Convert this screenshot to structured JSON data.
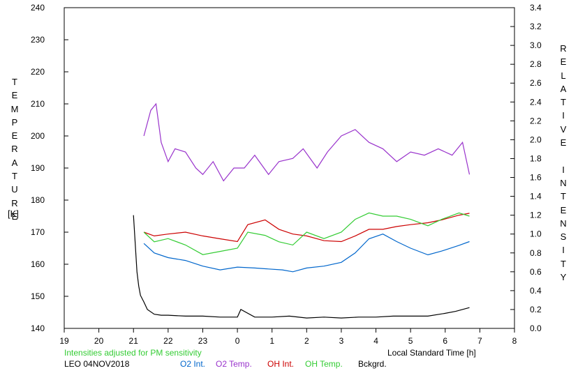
{
  "chart_data": {
    "type": "line",
    "xlabel": "Local Standard Time [h]",
    "ylabel_left": "TEMPERATURE",
    "ylabel_left_unit": "[K]",
    "ylabel_right": "RELATIVE INTENSITY",
    "x_ticks": [
      "19",
      "20",
      "21",
      "22",
      "23",
      "0",
      "1",
      "2",
      "3",
      "4",
      "5",
      "6",
      "7",
      "8"
    ],
    "xlim": [
      19,
      32
    ],
    "ylim_left": [
      140,
      240
    ],
    "ylim_right": [
      0,
      3.4
    ],
    "y_ticks_left": [
      "140",
      "150",
      "160",
      "170",
      "180",
      "190",
      "200",
      "210",
      "220",
      "230",
      "240"
    ],
    "y_ticks_right": [
      "0.0",
      "0.2",
      "0.4",
      "0.6",
      "0.8",
      "1.0",
      "1.2",
      "1.4",
      "1.6",
      "1.8",
      "2.0",
      "2.2",
      "2.4",
      "2.6",
      "2.8",
      "3.0",
      "3.2",
      "3.4"
    ],
    "grid": false,
    "note": "Intensities adjusted for PM sensitivity",
    "station": "LEO 04NOV2018",
    "series": [
      {
        "name": "O2 Int.",
        "color": "#0066cc",
        "axis": "right",
        "x": [
          21.3,
          21.6,
          22.0,
          22.5,
          23.0,
          23.5,
          24.0,
          24.5,
          24.9,
          25.3,
          25.6,
          26.0,
          26.5,
          27.0,
          27.4,
          27.8,
          28.2,
          28.6,
          29.0,
          29.5,
          29.9,
          30.4,
          30.7
        ],
        "y": [
          0.9,
          0.8,
          0.75,
          0.72,
          0.66,
          0.62,
          0.65,
          0.64,
          0.63,
          0.62,
          0.6,
          0.64,
          0.66,
          0.7,
          0.8,
          0.95,
          1.0,
          0.92,
          0.85,
          0.78,
          0.82,
          0.88,
          0.92
        ]
      },
      {
        "name": "O2 Temp.",
        "color": "#9933cc",
        "axis": "left",
        "x": [
          21.3,
          21.5,
          21.65,
          21.8,
          22.0,
          22.2,
          22.5,
          22.8,
          23.0,
          23.3,
          23.6,
          23.9,
          24.2,
          24.5,
          24.9,
          25.2,
          25.6,
          25.9,
          26.3,
          26.6,
          27.0,
          27.4,
          27.8,
          28.2,
          28.6,
          29.0,
          29.4,
          29.8,
          30.2,
          30.5,
          30.7
        ],
        "y": [
          200,
          208,
          210,
          198,
          192,
          196,
          195,
          190,
          188,
          192,
          186,
          190,
          190,
          194,
          188,
          192,
          193,
          196,
          190,
          195,
          200,
          202,
          198,
          196,
          192,
          195,
          194,
          196,
          194,
          198,
          188
        ]
      },
      {
        "name": "OH Int.",
        "color": "#cc0000",
        "axis": "right",
        "x": [
          21.3,
          21.6,
          22.0,
          22.5,
          23.0,
          23.5,
          24.0,
          24.3,
          24.8,
          25.2,
          25.6,
          26.0,
          26.5,
          27.0,
          27.4,
          27.8,
          28.2,
          28.6,
          29.0,
          29.5,
          29.9,
          30.4,
          30.7
        ],
        "y": [
          1.02,
          0.98,
          1.0,
          1.02,
          0.98,
          0.95,
          0.92,
          1.1,
          1.15,
          1.05,
          1.0,
          0.98,
          0.93,
          0.92,
          0.98,
          1.05,
          1.05,
          1.08,
          1.1,
          1.12,
          1.15,
          1.2,
          1.22
        ]
      },
      {
        "name": "OH Temp.",
        "color": "#33cc33",
        "axis": "left",
        "x": [
          21.3,
          21.6,
          22.0,
          22.5,
          23.0,
          23.5,
          24.0,
          24.3,
          24.8,
          25.2,
          25.6,
          26.0,
          26.5,
          27.0,
          27.4,
          27.8,
          28.2,
          28.6,
          29.0,
          29.5,
          29.9,
          30.4,
          30.7
        ],
        "y": [
          170,
          167,
          168,
          166,
          163,
          164,
          165,
          170,
          169,
          167,
          166,
          170,
          168,
          170,
          174,
          176,
          175,
          175,
          174,
          172,
          174,
          176,
          175
        ]
      },
      {
        "name": "Bckgrd.",
        "color": "#000000",
        "axis": "right",
        "x": [
          21.0,
          21.05,
          21.1,
          21.15,
          21.2,
          21.3,
          21.4,
          21.6,
          21.8,
          22.0,
          22.5,
          23.0,
          23.5,
          24.0,
          24.1,
          24.5,
          25.0,
          25.5,
          26.0,
          26.5,
          27.0,
          27.5,
          28.0,
          28.5,
          29.0,
          29.5,
          30.0,
          30.3,
          30.7
        ],
        "y": [
          1.2,
          0.9,
          0.6,
          0.45,
          0.35,
          0.28,
          0.2,
          0.15,
          0.14,
          0.14,
          0.13,
          0.13,
          0.12,
          0.12,
          0.2,
          0.12,
          0.12,
          0.13,
          0.11,
          0.12,
          0.11,
          0.12,
          0.12,
          0.13,
          0.13,
          0.13,
          0.16,
          0.18,
          0.22
        ]
      }
    ]
  },
  "footer": {
    "note": "Intensities adjusted for PM sensitivity",
    "station": "LEO 04NOV2018",
    "legend": [
      "O2 Int.",
      "O2 Temp.",
      "OH Int.",
      "OH Temp.",
      "Bckgrd."
    ]
  },
  "colors": {
    "o2int": "#0066cc",
    "o2temp": "#9933cc",
    "ohint": "#cc0000",
    "ohtemp": "#33cc33",
    "bckgrd": "#000000",
    "note": "#33cc33"
  }
}
